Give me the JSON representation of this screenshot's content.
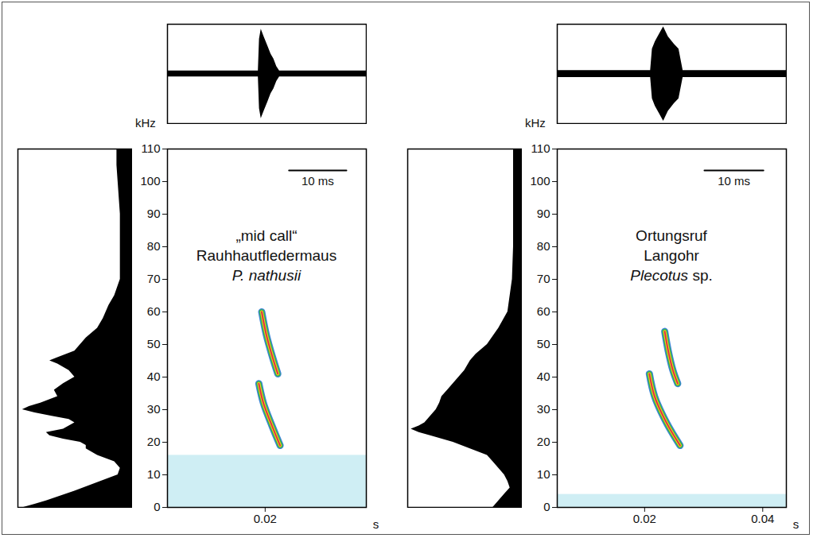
{
  "chart_data": [
    {
      "type": "spectrogram",
      "title": [
        "„mid call“",
        "Rauhhautfledermaus"
      ],
      "species": [
        "P. nathusii"
      ],
      "x_label": "s",
      "y_label": "kHz",
      "xlim": [
        0.003,
        0.0376
      ],
      "xticks": [
        0.02
      ],
      "ylim": [
        0,
        110
      ],
      "yticks": [
        0,
        10,
        20,
        30,
        40,
        50,
        60,
        70,
        80,
        90,
        100,
        110
      ],
      "scale_bar": {
        "value": 0.01,
        "label": "10 ms"
      },
      "noise_kHz": [
        0,
        16
      ],
      "contours": [
        {
          "t": [
            0.0189,
            0.0197,
            0.0212,
            0.0226
          ],
          "kHz": [
            38,
            32,
            25,
            19
          ]
        },
        {
          "t": [
            0.0194,
            0.0202,
            0.0213,
            0.0222
          ],
          "kHz": [
            60,
            53,
            46,
            41
          ]
        }
      ],
      "oscillogram": {
        "t": [
          0.003,
          0.0188,
          0.019,
          0.0193,
          0.0198,
          0.0205,
          0.021,
          0.0215,
          0.022,
          0.0225,
          0.0376
        ],
        "amplitude": [
          0.06,
          0.06,
          0.7,
          0.9,
          0.75,
          0.55,
          0.4,
          0.3,
          0.15,
          0.06,
          0.06
        ],
        "ylim": [
          -1,
          1
        ]
      },
      "spectrum": {
        "kHz": [
          0,
          1,
          2,
          5,
          10,
          12,
          14,
          16,
          18,
          19,
          20,
          21,
          22,
          23,
          24,
          25,
          26,
          27,
          28,
          29,
          30,
          31,
          32,
          34,
          36,
          38,
          40,
          42,
          44,
          45,
          46,
          48,
          50,
          52,
          55,
          58,
          62,
          65,
          70,
          80,
          90,
          100,
          105,
          110
        ],
        "amplitude": [
          0.95,
          0.85,
          0.75,
          0.5,
          0.12,
          0.1,
          0.15,
          0.3,
          0.4,
          0.4,
          0.45,
          0.6,
          0.72,
          0.75,
          0.6,
          0.55,
          0.5,
          0.55,
          0.7,
          0.85,
          0.96,
          0.9,
          0.8,
          0.65,
          0.68,
          0.6,
          0.5,
          0.55,
          0.65,
          0.72,
          0.65,
          0.5,
          0.45,
          0.4,
          0.3,
          0.25,
          0.2,
          0.15,
          0.1,
          0.1,
          0.1,
          0.12,
          0.13,
          0.13
        ],
        "xlim": [
          1,
          0
        ]
      }
    },
    {
      "type": "spectrogram",
      "title": [
        "Ortungsruf",
        "Langohr"
      ],
      "species": [
        "Plecotus",
        "sp."
      ],
      "x_label": "s",
      "y_label": "kHz",
      "xlim": [
        0.0052,
        0.044
      ],
      "xticks": [
        0.02,
        0.04
      ],
      "ylim": [
        0,
        110
      ],
      "yticks": [
        0,
        10,
        20,
        30,
        40,
        50,
        60,
        70,
        80,
        90,
        100,
        110
      ],
      "scale_bar": {
        "value": 0.01,
        "label": "10 ms"
      },
      "noise_kHz": [
        0,
        4
      ],
      "contours": [
        {
          "t": [
            0.0208,
            0.0217,
            0.0237,
            0.026
          ],
          "kHz": [
            41,
            34,
            26,
            19
          ]
        },
        {
          "t": [
            0.0234,
            0.024,
            0.0248,
            0.0256
          ],
          "kHz": [
            54,
            48,
            42,
            38
          ]
        }
      ],
      "oscillogram": {
        "t": [
          0.0052,
          0.021,
          0.0213,
          0.0218,
          0.0225,
          0.0232,
          0.024,
          0.025,
          0.0258,
          0.0265,
          0.044
        ],
        "amplitude": [
          0.07,
          0.07,
          0.5,
          0.65,
          0.8,
          0.95,
          0.75,
          0.6,
          0.5,
          0.07,
          0.07
        ],
        "ylim": [
          -1,
          1
        ]
      },
      "spectrum": {
        "kHz": [
          0,
          2,
          4,
          6,
          8,
          10,
          12,
          14,
          16,
          18,
          20,
          22,
          23,
          24,
          25,
          26,
          28,
          30,
          32,
          34,
          36,
          38,
          40,
          42,
          45,
          47,
          50,
          55,
          60,
          65,
          70,
          80,
          90,
          100,
          110
        ],
        "amplitude": [
          0.25,
          0.2,
          0.15,
          0.1,
          0.12,
          0.15,
          0.2,
          0.25,
          0.3,
          0.45,
          0.6,
          0.8,
          0.9,
          0.97,
          0.9,
          0.85,
          0.8,
          0.75,
          0.72,
          0.7,
          0.65,
          0.6,
          0.55,
          0.5,
          0.45,
          0.4,
          0.3,
          0.2,
          0.12,
          0.1,
          0.08,
          0.07,
          0.07,
          0.07,
          0.07
        ],
        "xlim": [
          1,
          0
        ]
      }
    }
  ]
}
